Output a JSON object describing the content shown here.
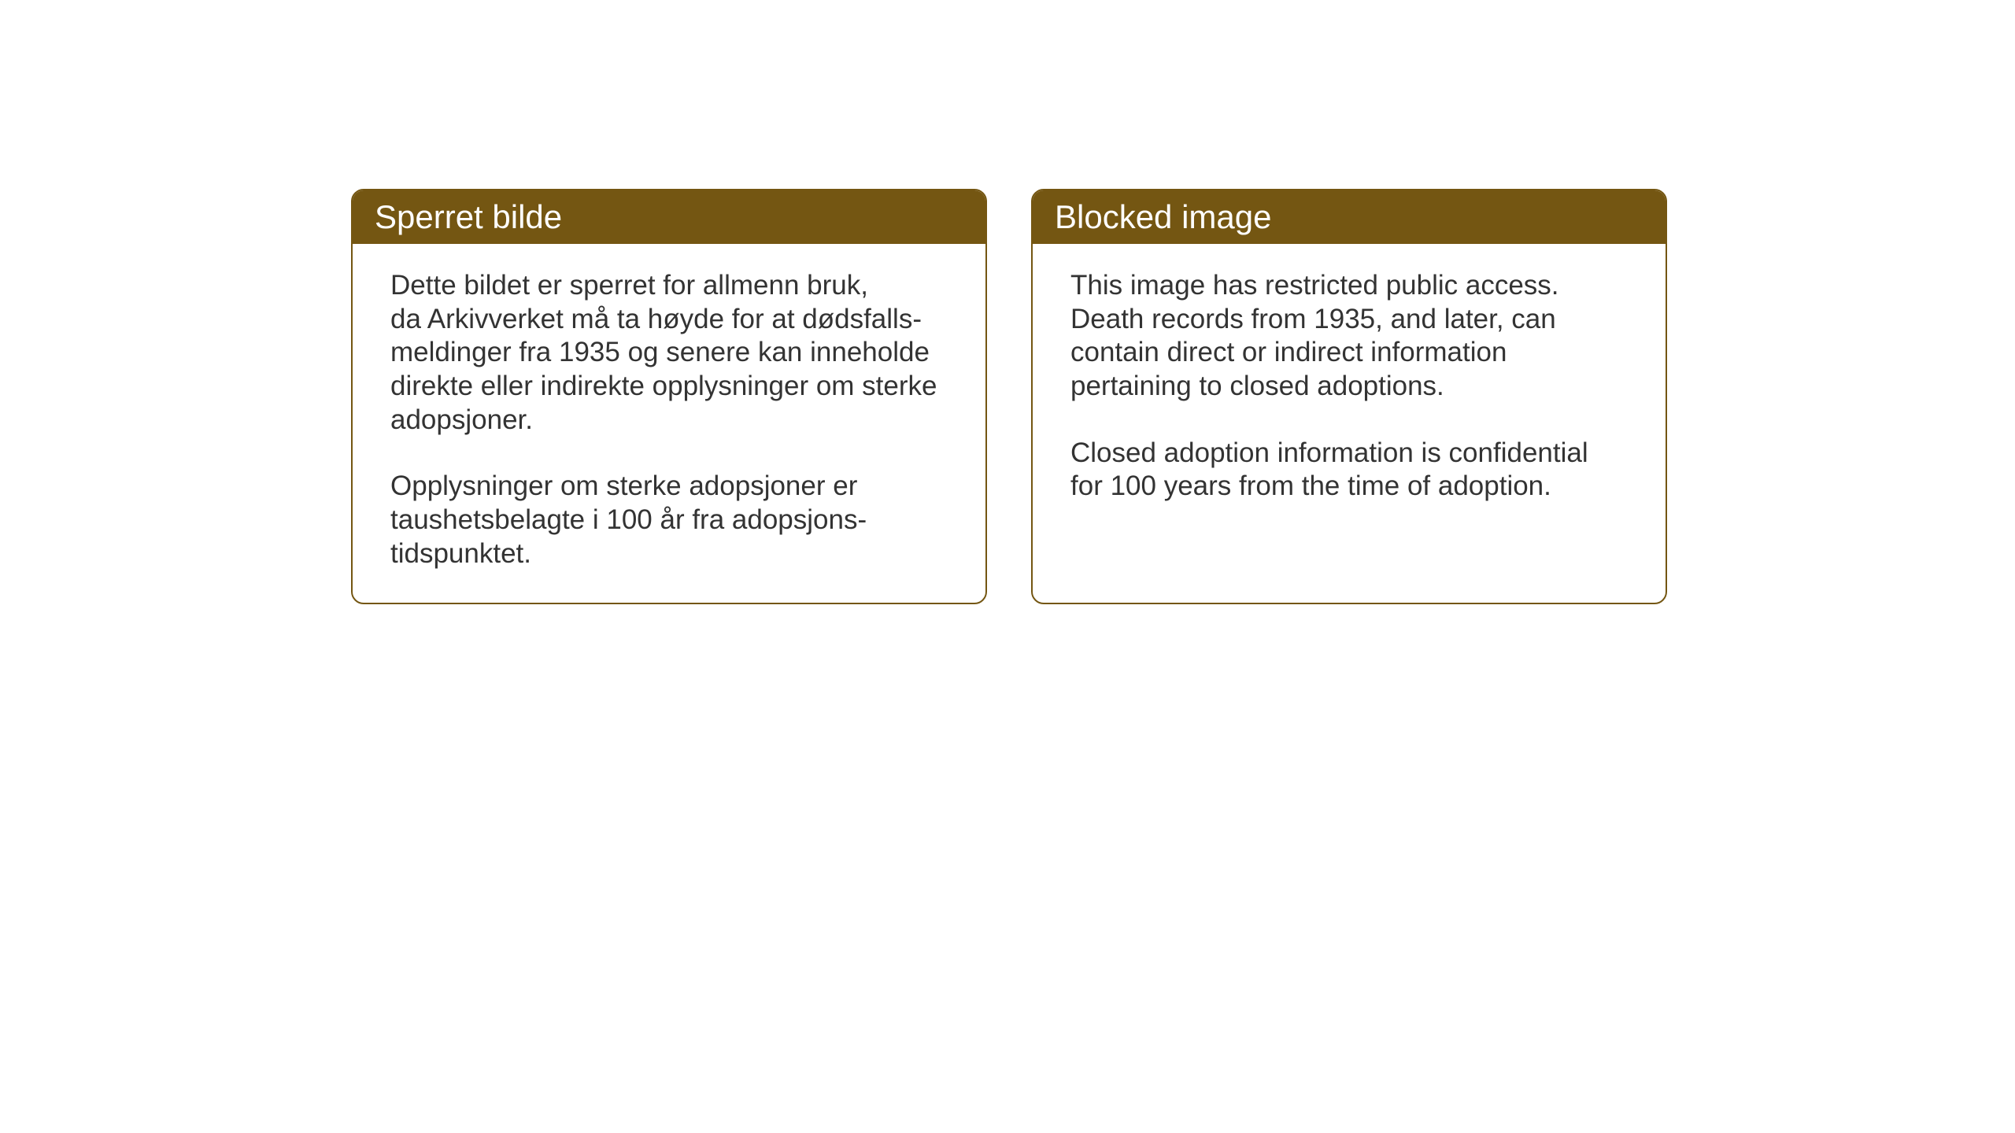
{
  "background_color": "#ffffff",
  "card_border_color": "#745612",
  "card_header_bg": "#745612",
  "card_header_text_color": "#ffffff",
  "card_body_text_color": "#333333",
  "header_fontsize": 42,
  "body_fontsize": 35,
  "cards": {
    "norwegian": {
      "title": "Sperret bilde",
      "paragraph1_line1": "Dette bildet er sperret for allmenn bruk,",
      "paragraph1_line2": "da Arkivverket må ta høyde for at dødsfalls-",
      "paragraph1_line3": "meldinger fra 1935 og senere kan inneholde",
      "paragraph1_line4": "direkte eller indirekte opplysninger om sterke",
      "paragraph1_line5": "adopsjoner.",
      "paragraph2_line1": "Opplysninger om sterke adopsjoner er",
      "paragraph2_line2": "taushetsbelagte i 100 år fra adopsjons-",
      "paragraph2_line3": "tidspunktet."
    },
    "english": {
      "title": "Blocked image",
      "paragraph1_line1": "This image has restricted public access.",
      "paragraph1_line2": "Death records from 1935, and later, can",
      "paragraph1_line3": "contain direct or indirect information",
      "paragraph1_line4": "pertaining to closed adoptions.",
      "paragraph2_line1": "Closed adoption information is confidential",
      "paragraph2_line2": "for 100 years from the time of adoption."
    }
  }
}
